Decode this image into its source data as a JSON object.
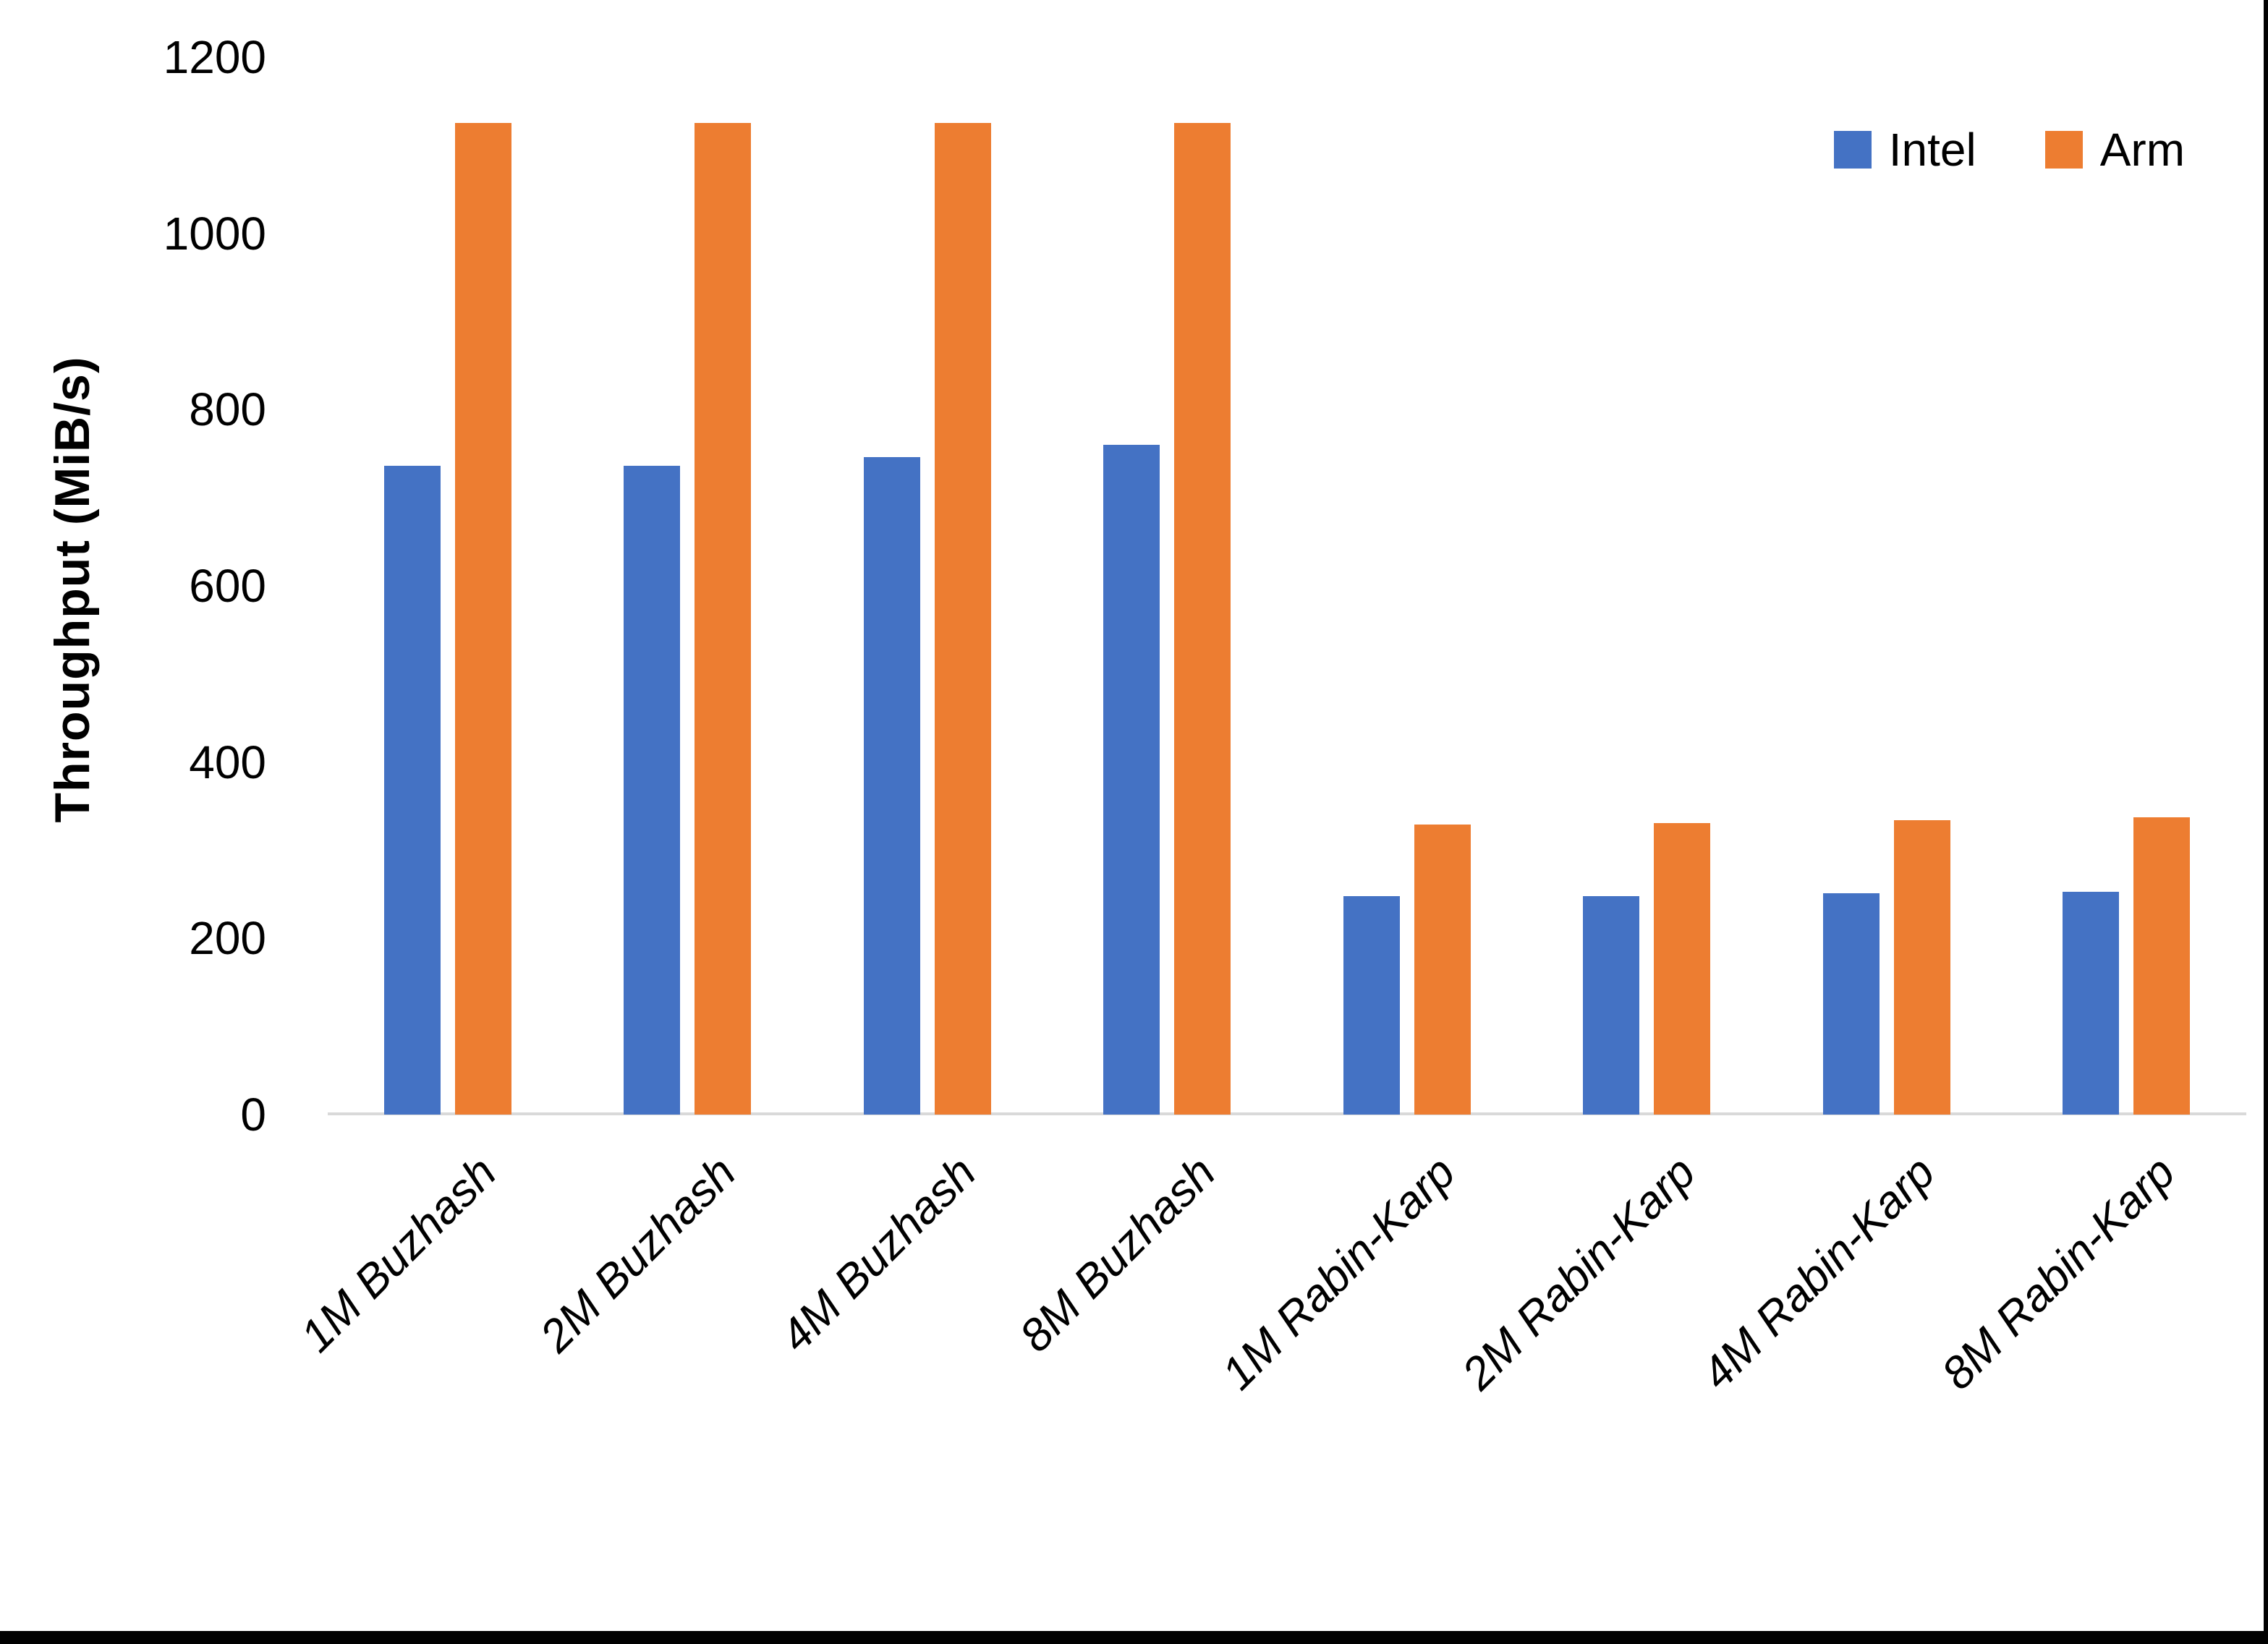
{
  "chart_data": {
    "type": "bar",
    "title": "",
    "ylabel": "Throughput (MiB/s)",
    "xlabel": "",
    "ylim": [
      0,
      1200
    ],
    "yticks": [
      0,
      200,
      400,
      600,
      800,
      1000,
      1200
    ],
    "grid": false,
    "legend_position": "top-right",
    "categories": [
      "1M Buzhash",
      "2M Buzhash",
      "4M Buzhash",
      "8M Buzhash",
      "1M Rabin-Karp",
      "2M Rabin-Karp",
      "4M Rabin-Karp",
      "8M Rabin-Karp"
    ],
    "series": [
      {
        "name": "Intel",
        "color": "#4472C4",
        "values": [
          736,
          736,
          746,
          760,
          248,
          248,
          251,
          253
        ]
      },
      {
        "name": "Arm",
        "color": "#ED7D31",
        "values": [
          1125,
          1125,
          1125,
          1125,
          329,
          331,
          334,
          337
        ]
      }
    ],
    "axis_line_color": "#D9D9D9"
  }
}
